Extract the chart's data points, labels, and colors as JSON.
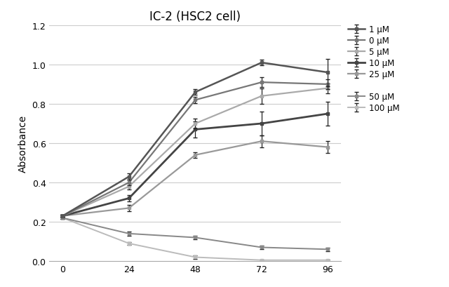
{
  "title": "IC-2 (HSC2 cell)",
  "xlabel": "",
  "ylabel": "Absorbance",
  "x": [
    0,
    24,
    48,
    72,
    96
  ],
  "series": [
    {
      "label": "1 μM",
      "color": "#555555",
      "linewidth": 1.8,
      "y": [
        0.23,
        0.43,
        0.86,
        1.01,
        0.96
      ],
      "yerr": [
        0.005,
        0.015,
        0.015,
        0.015,
        0.07
      ]
    },
    {
      "label": "0 μM",
      "color": "#777777",
      "linewidth": 1.6,
      "y": [
        0.23,
        0.4,
        0.82,
        0.91,
        0.9
      ],
      "yerr": [
        0.005,
        0.015,
        0.015,
        0.025,
        0.025
      ]
    },
    {
      "label": "5 μM",
      "color": "#aaaaaa",
      "linewidth": 1.6,
      "y": [
        0.23,
        0.38,
        0.7,
        0.84,
        0.88
      ],
      "yerr": [
        0.005,
        0.015,
        0.025,
        0.04,
        0.025
      ]
    },
    {
      "label": "10 μM",
      "color": "#444444",
      "linewidth": 2.0,
      "y": [
        0.23,
        0.32,
        0.67,
        0.7,
        0.75
      ],
      "yerr": [
        0.005,
        0.015,
        0.04,
        0.06,
        0.06
      ]
    },
    {
      "label": "25 μM",
      "color": "#999999",
      "linewidth": 1.6,
      "y": [
        0.23,
        0.27,
        0.54,
        0.61,
        0.58
      ],
      "yerr": [
        0.005,
        0.015,
        0.015,
        0.03,
        0.03
      ]
    },
    {
      "label": "50 μM",
      "color": "#888888",
      "linewidth": 1.4,
      "y": [
        0.22,
        0.14,
        0.12,
        0.07,
        0.06
      ],
      "yerr": [
        0.005,
        0.01,
        0.01,
        0.01,
        0.008
      ]
    },
    {
      "label": "100 μM",
      "color": "#bbbbbb",
      "linewidth": 1.4,
      "y": [
        0.22,
        0.09,
        0.02,
        0.005,
        0.005
      ],
      "yerr": [
        0.005,
        0.008,
        0.008,
        0.003,
        0.003
      ]
    }
  ],
  "ylim": [
    0.0,
    1.2
  ],
  "yticks": [
    0.0,
    0.2,
    0.4,
    0.6,
    0.8,
    1.0,
    1.2
  ],
  "xticks": [
    0,
    24,
    48,
    72,
    96
  ],
  "background_color": "#ffffff",
  "grid_color": "#cccccc"
}
